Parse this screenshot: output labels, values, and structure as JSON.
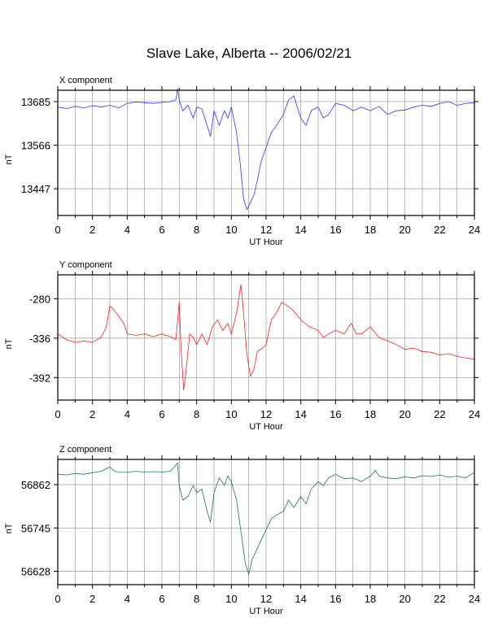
{
  "title": "Slave Lake, Alberta -- 2006/02/21",
  "colors": {
    "x": "#3333ee",
    "y": "#ee2222",
    "z": "#227744",
    "grid": "#999999"
  },
  "chart_data": [
    {
      "type": "line",
      "title": "X component",
      "xlabel": "UT Hour",
      "ylabel": "nT",
      "xlim": [
        0,
        24
      ],
      "ylim": [
        13374,
        13716
      ],
      "xticks": [
        0,
        2,
        4,
        6,
        8,
        10,
        12,
        14,
        16,
        18,
        20,
        22,
        24
      ],
      "yticks": [
        13447,
        13566,
        13685
      ],
      "grid": true,
      "series": [
        {
          "color": "#3333ee",
          "x": [
            0,
            0.5,
            1,
            1.5,
            2,
            2.5,
            3,
            3.5,
            4,
            4.5,
            5,
            5.5,
            6,
            6.5,
            6.8,
            6.9,
            7.0,
            7.2,
            7.5,
            7.8,
            8.0,
            8.3,
            8.6,
            8.8,
            9.0,
            9.3,
            9.6,
            9.8,
            10.0,
            10.3,
            10.5,
            10.7,
            10.9,
            11.1,
            11.3,
            11.5,
            11.7,
            12.0,
            12.3,
            12.6,
            13.0,
            13.3,
            13.6,
            14.0,
            14.3,
            14.6,
            15.0,
            15.3,
            15.6,
            16.0,
            16.5,
            17.0,
            17.5,
            18.0,
            18.5,
            19.0,
            19.5,
            20.0,
            20.5,
            21.0,
            21.5,
            22.0,
            22.5,
            23.0,
            23.5,
            24.0
          ],
          "y": [
            13670,
            13666,
            13672,
            13668,
            13674,
            13670,
            13675,
            13668,
            13680,
            13684,
            13682,
            13680,
            13683,
            13685,
            13690,
            13720,
            13690,
            13660,
            13675,
            13640,
            13670,
            13665,
            13620,
            13590,
            13660,
            13620,
            13660,
            13640,
            13670,
            13600,
            13520,
            13420,
            13390,
            13410,
            13430,
            13470,
            13520,
            13560,
            13600,
            13620,
            13650,
            13690,
            13700,
            13640,
            13620,
            13660,
            13670,
            13640,
            13650,
            13680,
            13675,
            13660,
            13670,
            13660,
            13672,
            13650,
            13660,
            13662,
            13670,
            13675,
            13672,
            13680,
            13685,
            13675,
            13680,
            13682
          ]
        }
      ]
    },
    {
      "type": "line",
      "title": "Y component",
      "xlabel": "UT Hour",
      "ylabel": "nT",
      "xlim": [
        0,
        24
      ],
      "ylim": [
        -424,
        -246
      ],
      "xticks": [
        0,
        2,
        4,
        6,
        8,
        10,
        12,
        14,
        16,
        18,
        20,
        22,
        24
      ],
      "yticks": [
        -280,
        -336,
        -392
      ],
      "grid": true,
      "series": [
        {
          "color": "#ee2222",
          "x": [
            0,
            0.5,
            1,
            1.5,
            2,
            2.5,
            2.8,
            3.0,
            3.2,
            3.5,
            3.8,
            4.0,
            4.5,
            5.0,
            5.5,
            6.0,
            6.5,
            6.8,
            7.0,
            7.1,
            7.25,
            7.4,
            7.6,
            7.8,
            8.0,
            8.3,
            8.6,
            8.9,
            9.2,
            9.5,
            9.8,
            10.0,
            10.3,
            10.55,
            10.7,
            10.9,
            11.1,
            11.3,
            11.5,
            11.8,
            12.0,
            12.3,
            12.6,
            12.9,
            13.2,
            13.5,
            14.0,
            14.5,
            15.0,
            15.3,
            15.6,
            16.0,
            16.5,
            16.9,
            17.2,
            17.5,
            18.0,
            18.5,
            19.0,
            19.5,
            20.0,
            20.5,
            21.0,
            21.5,
            22.0,
            22.5,
            23.0,
            23.5,
            24.0
          ],
          "y": [
            -330,
            -338,
            -342,
            -340,
            -342,
            -335,
            -320,
            -290,
            -295,
            -305,
            -315,
            -330,
            -332,
            -330,
            -334,
            -330,
            -334,
            -338,
            -285,
            -350,
            -410,
            -380,
            -330,
            -335,
            -345,
            -330,
            -345,
            -320,
            -310,
            -325,
            -315,
            -330,
            -300,
            -260,
            -300,
            -360,
            -390,
            -380,
            -355,
            -350,
            -345,
            -310,
            -300,
            -285,
            -290,
            -295,
            -310,
            -320,
            -325,
            -335,
            -330,
            -325,
            -330,
            -315,
            -330,
            -330,
            -320,
            -335,
            -340,
            -345,
            -352,
            -350,
            -355,
            -356,
            -360,
            -358,
            -362,
            -364,
            -366
          ]
        }
      ]
    },
    {
      "type": "line",
      "title": "Z component",
      "xlabel": "UT Hour",
      "ylabel": "nT",
      "xlim": [
        0,
        24
      ],
      "ylim": [
        56592,
        56930
      ],
      "xticks": [
        0,
        2,
        4,
        6,
        8,
        10,
        12,
        14,
        16,
        18,
        20,
        22,
        24
      ],
      "yticks": [
        56628,
        56745,
        56862
      ],
      "grid": true,
      "series": [
        {
          "color": "#227744",
          "x": [
            0,
            0.5,
            1,
            1.5,
            2,
            2.5,
            2.8,
            3.0,
            3.2,
            3.5,
            4.0,
            4.5,
            5.0,
            5.5,
            6.0,
            6.5,
            6.8,
            6.9,
            7.0,
            7.2,
            7.5,
            7.8,
            8.0,
            8.3,
            8.6,
            8.8,
            9.0,
            9.3,
            9.6,
            9.8,
            10.0,
            10.3,
            10.6,
            10.8,
            11.0,
            11.2,
            11.5,
            11.8,
            12.0,
            12.3,
            12.6,
            13.0,
            13.3,
            13.6,
            14.0,
            14.3,
            14.6,
            15.0,
            15.3,
            15.6,
            16.0,
            16.5,
            17.0,
            17.5,
            18.0,
            18.3,
            18.5,
            19.0,
            19.5,
            20.0,
            20.5,
            21.0,
            21.5,
            22.0,
            22.5,
            23.0,
            23.5,
            24.0
          ],
          "y": [
            56890,
            56888,
            56892,
            56890,
            56894,
            56898,
            56905,
            56910,
            56900,
            56895,
            56895,
            56898,
            56896,
            56897,
            56896,
            56898,
            56915,
            56920,
            56860,
            56820,
            56830,
            56860,
            56840,
            56850,
            56790,
            56760,
            56840,
            56880,
            56860,
            56885,
            56870,
            56820,
            56720,
            56650,
            56620,
            56660,
            56690,
            56720,
            56740,
            56770,
            56780,
            56790,
            56820,
            56800,
            56830,
            56810,
            56850,
            56870,
            56860,
            56880,
            56890,
            56878,
            56880,
            56870,
            56885,
            56900,
            56885,
            56880,
            56878,
            56883,
            56880,
            56886,
            56884,
            56888,
            56882,
            56885,
            56880,
            56895
          ]
        }
      ]
    }
  ]
}
